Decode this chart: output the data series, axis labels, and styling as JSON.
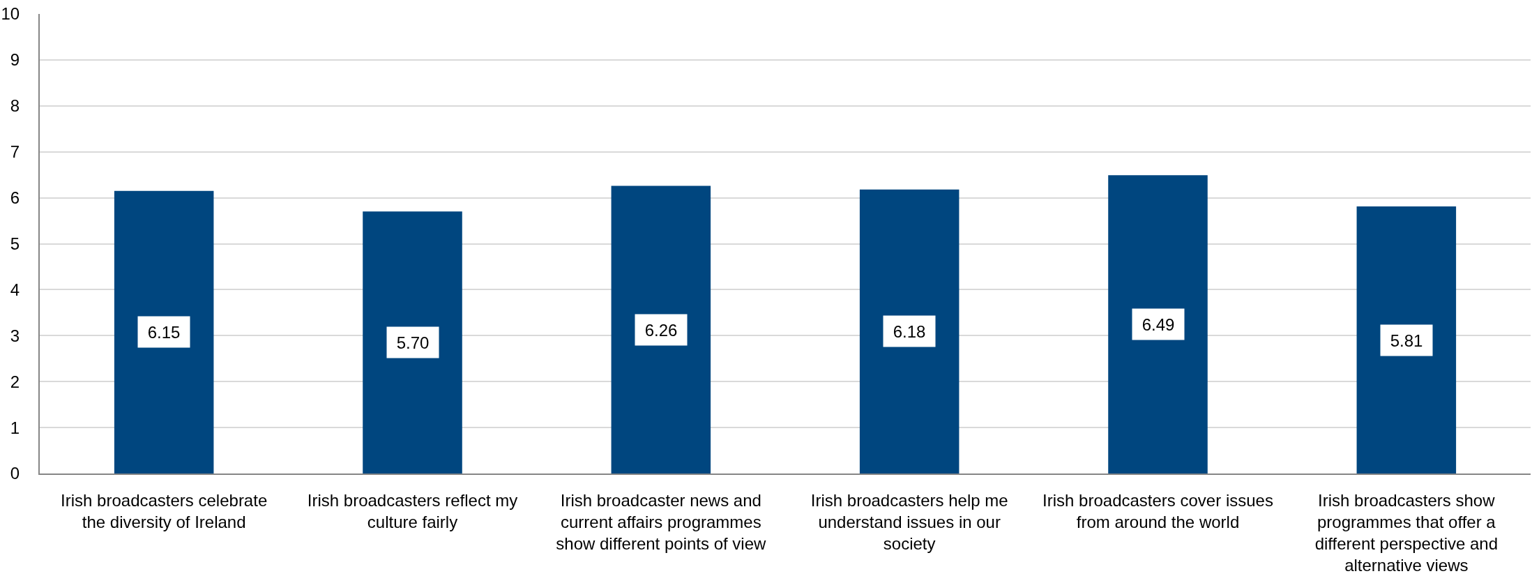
{
  "chart_data": {
    "type": "bar",
    "categories": [
      "Irish broadcasters celebrate the diversity of Ireland",
      "Irish broadcasters reflect my culture fairly",
      "Irish broadcaster news and current affairs programmes show different points of view",
      "Irish broadcasters help me understand issues in our society",
      "Irish broadcasters cover issues from around the world",
      "Irish broadcasters show programmes that offer a different perspective and alternative views"
    ],
    "values": [
      6.15,
      5.7,
      6.26,
      6.18,
      6.49,
      5.81
    ],
    "value_labels": [
      "6.15",
      "5.70",
      "6.26",
      "6.18",
      "6.49",
      "5.81"
    ],
    "color": "#00467f",
    "ylim": [
      0,
      10
    ],
    "yticks": [
      0,
      1,
      2,
      3,
      4,
      5,
      6,
      7,
      8,
      9,
      10
    ],
    "grid": "y"
  }
}
